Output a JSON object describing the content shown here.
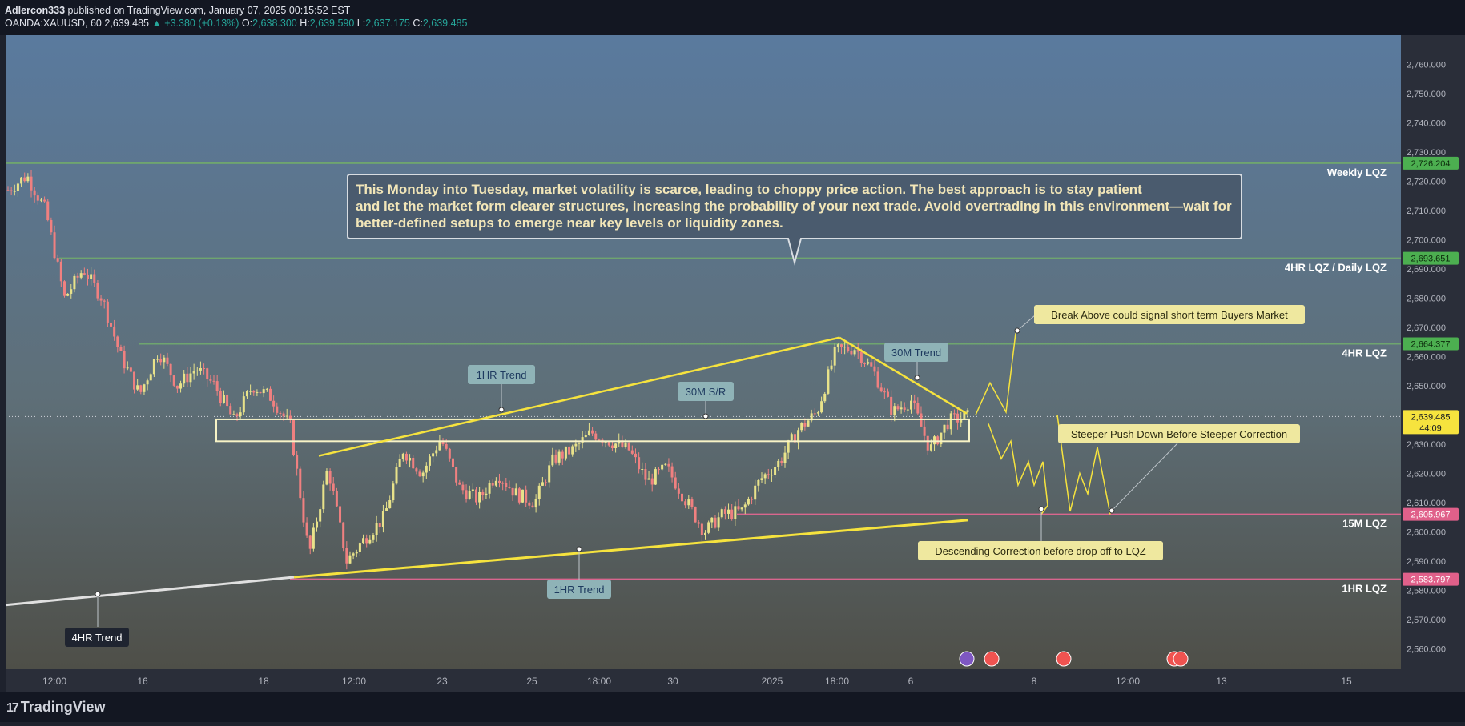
{
  "header": {
    "publisher": "Adlercon333",
    "published_text": "published on TradingView.com, January 07, 2025 00:15:52 EST",
    "symbol": "OANDA:XAUUSD, 60",
    "last": "2,639.485",
    "change": "▲ +3.380 (+0.13%)",
    "o_label": "O:",
    "o": "2,638.300",
    "h_label": "H:",
    "h": "2,639.590",
    "l_label": "L:",
    "l": "2,637.175",
    "c_label": "C:",
    "c": "2,639.485"
  },
  "colors": {
    "up": "#e8e28a",
    "down": "#f08080",
    "trend": "#f6e33e",
    "lqz_green": "#6fa56f",
    "lqz_pink": "#d9668e",
    "bg_top": "#5a7a9e",
    "bg_bottom": "#4c4c44"
  },
  "chart_data": {
    "type": "candlestick",
    "symbol": "OANDA:XAUUSD",
    "interval": "60",
    "ylim": [
      2553,
      2770
    ],
    "y_ticks": [
      "2,560.000",
      "2,570.000",
      "2,580.000",
      "2,590.000",
      "2,600.000",
      "2,610.000",
      "2,620.000",
      "2,630.000",
      "2,640.000",
      "2,650.000",
      "2,660.000",
      "2,670.000",
      "2,680.000",
      "2,690.000",
      "2,700.000",
      "2,710.000",
      "2,720.000",
      "2,730.000",
      "2,740.000",
      "2,750.000",
      "2,760.000"
    ],
    "x_ticks": [
      "12:00",
      "16",
      "18",
      "12:00",
      "23",
      "25",
      "18:00",
      "30",
      "2025",
      "18:00",
      "6",
      "8",
      "12:00",
      "13",
      "15"
    ],
    "current_price": {
      "value": 2639.485,
      "label": "2,639.485",
      "countdown": "44:09"
    },
    "levels": [
      {
        "name": "Weekly LQZ",
        "value": 2726.204,
        "label": "2,726.204",
        "color": "green"
      },
      {
        "name": "4HR LQZ / Daily LQZ",
        "value": 2693.651,
        "label": "2,693.651",
        "color": "green"
      },
      {
        "name": "4HR LQZ",
        "value": 2664.377,
        "label": "2,664.377",
        "color": "green"
      },
      {
        "name": "15M LQZ",
        "value": 2605.967,
        "label": "2,605.967",
        "color": "pink"
      },
      {
        "name": "1HR LQZ",
        "value": 2583.797,
        "label": "2,583.797",
        "color": "pink"
      }
    ],
    "annotation_text": "This Monday into Tuesday, market volatility is scarce, leading to choppy price action. The best approach is to stay patient and let the market form clearer structures, increasing the probability of your next trade. Avoid overtrading in this environment—wait for better-defined setups to emerge near key levels or liquidity zones.",
    "labels": {
      "trend_1hr_top": "1HR Trend",
      "sr_30m": "30M S/R",
      "trend_30m": "30M Trend",
      "trend_1hr_bottom": "1HR Trend",
      "trend_4hr": "4HR Trend",
      "break_above": "Break Above could signal short term Buyers Market",
      "steeper_push": "Steeper Push Down Before Steeper Correction",
      "descending_correction": "Descending Correction before drop off to LQZ"
    },
    "anchors": [
      {
        "y": 2717,
        "x": 0
      },
      {
        "y": 2722,
        "x": 1
      },
      {
        "y": 2710,
        "x": 2
      },
      {
        "y": 2680,
        "x": 3
      },
      {
        "y": 2690,
        "x": 4
      },
      {
        "y": 2680,
        "x": 5
      },
      {
        "y": 2660,
        "x": 6
      },
      {
        "y": 2647,
        "x": 7
      },
      {
        "y": 2662,
        "x": 8
      },
      {
        "y": 2650,
        "x": 9
      },
      {
        "y": 2656,
        "x": 10
      },
      {
        "y": 2650,
        "x": 11
      },
      {
        "y": 2638,
        "x": 12
      },
      {
        "y": 2650,
        "x": 13
      },
      {
        "y": 2646,
        "x": 14
      },
      {
        "y": 2636,
        "x": 15
      },
      {
        "y": 2592,
        "x": 16
      },
      {
        "y": 2622,
        "x": 17
      },
      {
        "y": 2590,
        "x": 18
      },
      {
        "y": 2598,
        "x": 19
      },
      {
        "y": 2605,
        "x": 20
      },
      {
        "y": 2628,
        "x": 21
      },
      {
        "y": 2620,
        "x": 22
      },
      {
        "y": 2632,
        "x": 23
      },
      {
        "y": 2615,
        "x": 24
      },
      {
        "y": 2611,
        "x": 25
      },
      {
        "y": 2620,
        "x": 26
      },
      {
        "y": 2613,
        "x": 27
      },
      {
        "y": 2610,
        "x": 28
      },
      {
        "y": 2625,
        "x": 29
      },
      {
        "y": 2628,
        "x": 30
      },
      {
        "y": 2634,
        "x": 31
      },
      {
        "y": 2631,
        "x": 32
      },
      {
        "y": 2628,
        "x": 33
      },
      {
        "y": 2617,
        "x": 34
      },
      {
        "y": 2622,
        "x": 35
      },
      {
        "y": 2611,
        "x": 36
      },
      {
        "y": 2600,
        "x": 37
      },
      {
        "y": 2606,
        "x": 38
      },
      {
        "y": 2607,
        "x": 39
      },
      {
        "y": 2618,
        "x": 40
      },
      {
        "y": 2624,
        "x": 41
      },
      {
        "y": 2635,
        "x": 42
      },
      {
        "y": 2641,
        "x": 43
      },
      {
        "y": 2662,
        "x": 44
      },
      {
        "y": 2663,
        "x": 45
      },
      {
        "y": 2655,
        "x": 46
      },
      {
        "y": 2641,
        "x": 47
      },
      {
        "y": 2645,
        "x": 48
      },
      {
        "y": 2628,
        "x": 49
      },
      {
        "y": 2638,
        "x": 50
      },
      {
        "y": 2639.485,
        "x": 51
      }
    ]
  },
  "footer": {
    "logo_mark": "17",
    "logo_text": "TradingView"
  }
}
